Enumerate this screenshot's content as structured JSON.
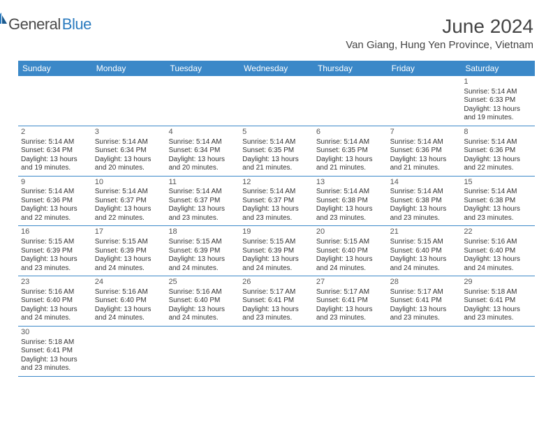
{
  "logo": {
    "general": "General",
    "blue": "Blue"
  },
  "title": "June 2024",
  "location": "Van Giang, Hung Yen Province, Vietnam",
  "colors": {
    "header_bg": "#3b88c8",
    "header_text": "#ffffff",
    "border": "#3b88c8",
    "text": "#333333",
    "logo_gray": "#4a4a4a",
    "logo_blue": "#2b7bbf"
  },
  "days": [
    "Sunday",
    "Monday",
    "Tuesday",
    "Wednesday",
    "Thursday",
    "Friday",
    "Saturday"
  ],
  "weeks": [
    [
      null,
      null,
      null,
      null,
      null,
      null,
      {
        "n": "1",
        "sr": "Sunrise: 5:14 AM",
        "ss": "Sunset: 6:33 PM",
        "dl": "Daylight: 13 hours and 19 minutes."
      }
    ],
    [
      {
        "n": "2",
        "sr": "Sunrise: 5:14 AM",
        "ss": "Sunset: 6:34 PM",
        "dl": "Daylight: 13 hours and 19 minutes."
      },
      {
        "n": "3",
        "sr": "Sunrise: 5:14 AM",
        "ss": "Sunset: 6:34 PM",
        "dl": "Daylight: 13 hours and 20 minutes."
      },
      {
        "n": "4",
        "sr": "Sunrise: 5:14 AM",
        "ss": "Sunset: 6:34 PM",
        "dl": "Daylight: 13 hours and 20 minutes."
      },
      {
        "n": "5",
        "sr": "Sunrise: 5:14 AM",
        "ss": "Sunset: 6:35 PM",
        "dl": "Daylight: 13 hours and 21 minutes."
      },
      {
        "n": "6",
        "sr": "Sunrise: 5:14 AM",
        "ss": "Sunset: 6:35 PM",
        "dl": "Daylight: 13 hours and 21 minutes."
      },
      {
        "n": "7",
        "sr": "Sunrise: 5:14 AM",
        "ss": "Sunset: 6:36 PM",
        "dl": "Daylight: 13 hours and 21 minutes."
      },
      {
        "n": "8",
        "sr": "Sunrise: 5:14 AM",
        "ss": "Sunset: 6:36 PM",
        "dl": "Daylight: 13 hours and 22 minutes."
      }
    ],
    [
      {
        "n": "9",
        "sr": "Sunrise: 5:14 AM",
        "ss": "Sunset: 6:36 PM",
        "dl": "Daylight: 13 hours and 22 minutes."
      },
      {
        "n": "10",
        "sr": "Sunrise: 5:14 AM",
        "ss": "Sunset: 6:37 PM",
        "dl": "Daylight: 13 hours and 22 minutes."
      },
      {
        "n": "11",
        "sr": "Sunrise: 5:14 AM",
        "ss": "Sunset: 6:37 PM",
        "dl": "Daylight: 13 hours and 23 minutes."
      },
      {
        "n": "12",
        "sr": "Sunrise: 5:14 AM",
        "ss": "Sunset: 6:37 PM",
        "dl": "Daylight: 13 hours and 23 minutes."
      },
      {
        "n": "13",
        "sr": "Sunrise: 5:14 AM",
        "ss": "Sunset: 6:38 PM",
        "dl": "Daylight: 13 hours and 23 minutes."
      },
      {
        "n": "14",
        "sr": "Sunrise: 5:14 AM",
        "ss": "Sunset: 6:38 PM",
        "dl": "Daylight: 13 hours and 23 minutes."
      },
      {
        "n": "15",
        "sr": "Sunrise: 5:14 AM",
        "ss": "Sunset: 6:38 PM",
        "dl": "Daylight: 13 hours and 23 minutes."
      }
    ],
    [
      {
        "n": "16",
        "sr": "Sunrise: 5:15 AM",
        "ss": "Sunset: 6:39 PM",
        "dl": "Daylight: 13 hours and 23 minutes."
      },
      {
        "n": "17",
        "sr": "Sunrise: 5:15 AM",
        "ss": "Sunset: 6:39 PM",
        "dl": "Daylight: 13 hours and 24 minutes."
      },
      {
        "n": "18",
        "sr": "Sunrise: 5:15 AM",
        "ss": "Sunset: 6:39 PM",
        "dl": "Daylight: 13 hours and 24 minutes."
      },
      {
        "n": "19",
        "sr": "Sunrise: 5:15 AM",
        "ss": "Sunset: 6:39 PM",
        "dl": "Daylight: 13 hours and 24 minutes."
      },
      {
        "n": "20",
        "sr": "Sunrise: 5:15 AM",
        "ss": "Sunset: 6:40 PM",
        "dl": "Daylight: 13 hours and 24 minutes."
      },
      {
        "n": "21",
        "sr": "Sunrise: 5:15 AM",
        "ss": "Sunset: 6:40 PM",
        "dl": "Daylight: 13 hours and 24 minutes."
      },
      {
        "n": "22",
        "sr": "Sunrise: 5:16 AM",
        "ss": "Sunset: 6:40 PM",
        "dl": "Daylight: 13 hours and 24 minutes."
      }
    ],
    [
      {
        "n": "23",
        "sr": "Sunrise: 5:16 AM",
        "ss": "Sunset: 6:40 PM",
        "dl": "Daylight: 13 hours and 24 minutes."
      },
      {
        "n": "24",
        "sr": "Sunrise: 5:16 AM",
        "ss": "Sunset: 6:40 PM",
        "dl": "Daylight: 13 hours and 24 minutes."
      },
      {
        "n": "25",
        "sr": "Sunrise: 5:16 AM",
        "ss": "Sunset: 6:40 PM",
        "dl": "Daylight: 13 hours and 24 minutes."
      },
      {
        "n": "26",
        "sr": "Sunrise: 5:17 AM",
        "ss": "Sunset: 6:41 PM",
        "dl": "Daylight: 13 hours and 23 minutes."
      },
      {
        "n": "27",
        "sr": "Sunrise: 5:17 AM",
        "ss": "Sunset: 6:41 PM",
        "dl": "Daylight: 13 hours and 23 minutes."
      },
      {
        "n": "28",
        "sr": "Sunrise: 5:17 AM",
        "ss": "Sunset: 6:41 PM",
        "dl": "Daylight: 13 hours and 23 minutes."
      },
      {
        "n": "29",
        "sr": "Sunrise: 5:18 AM",
        "ss": "Sunset: 6:41 PM",
        "dl": "Daylight: 13 hours and 23 minutes."
      }
    ],
    [
      {
        "n": "30",
        "sr": "Sunrise: 5:18 AM",
        "ss": "Sunset: 6:41 PM",
        "dl": "Daylight: 13 hours and 23 minutes."
      },
      null,
      null,
      null,
      null,
      null,
      null
    ]
  ]
}
